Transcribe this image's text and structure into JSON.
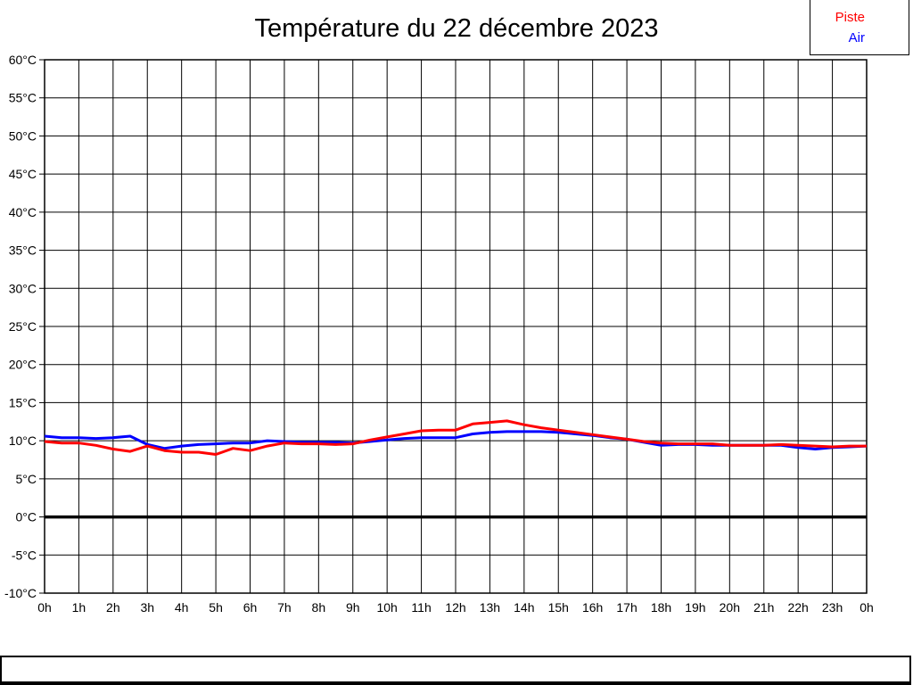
{
  "title": "Température du 22 décembre 2023",
  "legend": {
    "items": [
      {
        "label": "Piste",
        "color": "#ff0000"
      },
      {
        "label": "Air",
        "color": "#0000ff"
      }
    ]
  },
  "colors": {
    "piste": "#ff0000",
    "air": "#0000ff",
    "grid": "#000000",
    "axis": "#000000",
    "background": "#ffffff",
    "title_text": "#000000"
  },
  "chart_data": {
    "type": "line",
    "title": "Température du 22 décembre 2023",
    "xlabel": "",
    "ylabel": "",
    "xlim": [
      0,
      24
    ],
    "ylim": [
      -10,
      60
    ],
    "grid": true,
    "zero_line_bold": true,
    "legend_position": "top-right",
    "y_ticks": [
      {
        "v": 60,
        "label": "60°C"
      },
      {
        "v": 55,
        "label": "55°C"
      },
      {
        "v": 50,
        "label": "50°C"
      },
      {
        "v": 45,
        "label": "45°C"
      },
      {
        "v": 40,
        "label": "40°C"
      },
      {
        "v": 35,
        "label": "35°C"
      },
      {
        "v": 30,
        "label": "30°C"
      },
      {
        "v": 25,
        "label": "25°C"
      },
      {
        "v": 20,
        "label": "20°C"
      },
      {
        "v": 15,
        "label": "15°C"
      },
      {
        "v": 10,
        "label": "10°C"
      },
      {
        "v": 5,
        "label": "5°C"
      },
      {
        "v": 0,
        "label": "0°C"
      },
      {
        "v": -5,
        "label": "-5°C"
      },
      {
        "v": -10,
        "label": "-10°C"
      }
    ],
    "x_ticks": [
      {
        "v": 0,
        "label": "0h"
      },
      {
        "v": 1,
        "label": "1h"
      },
      {
        "v": 2,
        "label": "2h"
      },
      {
        "v": 3,
        "label": "3h"
      },
      {
        "v": 4,
        "label": "4h"
      },
      {
        "v": 5,
        "label": "5h"
      },
      {
        "v": 6,
        "label": "6h"
      },
      {
        "v": 7,
        "label": "7h"
      },
      {
        "v": 8,
        "label": "8h"
      },
      {
        "v": 9,
        "label": "9h"
      },
      {
        "v": 10,
        "label": "10h"
      },
      {
        "v": 11,
        "label": "11h"
      },
      {
        "v": 12,
        "label": "12h"
      },
      {
        "v": 13,
        "label": "13h"
      },
      {
        "v": 14,
        "label": "14h"
      },
      {
        "v": 15,
        "label": "15h"
      },
      {
        "v": 16,
        "label": "16h"
      },
      {
        "v": 17,
        "label": "17h"
      },
      {
        "v": 18,
        "label": "18h"
      },
      {
        "v": 19,
        "label": "19h"
      },
      {
        "v": 20,
        "label": "20h"
      },
      {
        "v": 21,
        "label": "21h"
      },
      {
        "v": 22,
        "label": "22h"
      },
      {
        "v": 23,
        "label": "23h"
      },
      {
        "v": 24,
        "label": "0h"
      }
    ],
    "x": [
      0,
      0.5,
      1,
      1.5,
      2,
      2.5,
      3,
      3.5,
      4,
      4.5,
      5,
      5.5,
      6,
      6.5,
      7,
      7.5,
      8,
      8.5,
      9,
      9.5,
      10,
      10.5,
      11,
      11.5,
      12,
      12.5,
      13,
      13.5,
      14,
      14.5,
      15,
      15.5,
      16,
      16.5,
      17,
      17.5,
      18,
      18.5,
      19,
      19.5,
      20,
      20.5,
      21,
      21.5,
      22,
      22.5,
      23,
      23.5,
      24
    ],
    "series": [
      {
        "name": "Piste",
        "color": "#ff0000",
        "values": [
          9.9,
          9.7,
          9.7,
          9.4,
          8.9,
          8.6,
          9.3,
          8.7,
          8.5,
          8.5,
          8.2,
          9.0,
          8.7,
          9.3,
          9.7,
          9.6,
          9.6,
          9.5,
          9.6,
          10.1,
          10.5,
          10.9,
          11.3,
          11.4,
          11.4,
          12.2,
          12.4,
          12.6,
          12.1,
          11.7,
          11.4,
          11.1,
          10.8,
          10.5,
          10.2,
          9.9,
          9.7,
          9.6,
          9.6,
          9.6,
          9.4,
          9.4,
          9.4,
          9.5,
          9.4,
          9.3,
          9.2,
          9.3,
          9.3
        ]
      },
      {
        "name": "Air",
        "color": "#0000ff",
        "values": [
          10.6,
          10.4,
          10.4,
          10.3,
          10.4,
          10.6,
          9.5,
          9.0,
          9.3,
          9.5,
          9.6,
          9.7,
          9.7,
          10.0,
          9.9,
          9.8,
          9.8,
          9.8,
          9.7,
          9.9,
          10.1,
          10.3,
          10.4,
          10.4,
          10.4,
          10.9,
          11.1,
          11.2,
          11.2,
          11.2,
          11.1,
          10.9,
          10.7,
          10.4,
          10.2,
          9.8,
          9.4,
          9.5,
          9.5,
          9.4,
          9.4,
          9.4,
          9.4,
          9.4,
          9.1,
          8.9,
          9.1,
          9.2,
          9.3
        ]
      }
    ]
  }
}
